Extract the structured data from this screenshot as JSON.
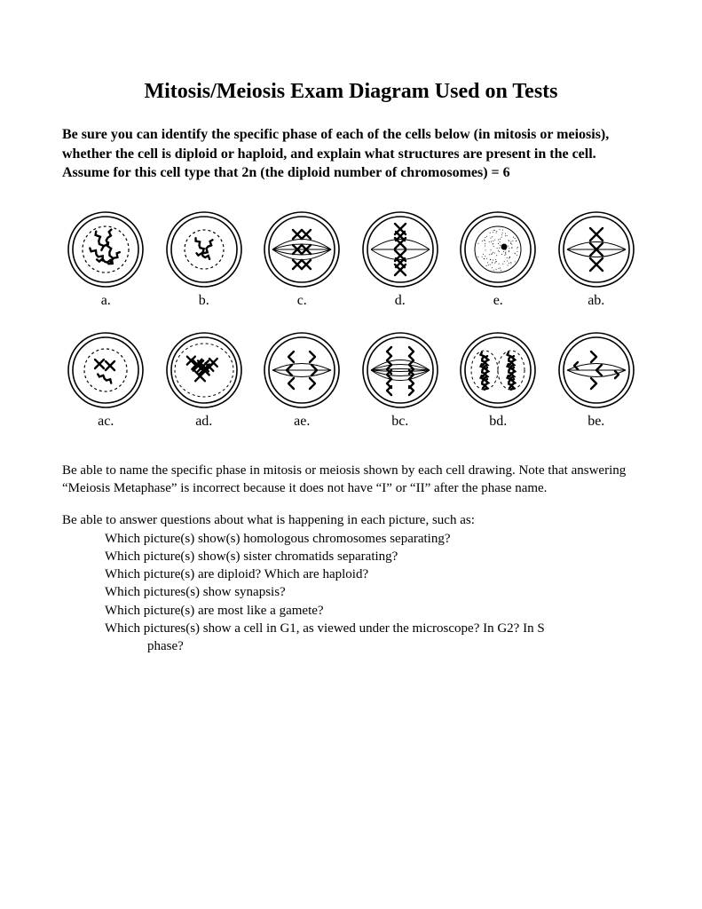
{
  "title": "Mitosis/Meiosis Exam Diagram Used on Tests",
  "intro": "Be sure you can identify the specific phase of each of the cells below (in mitosis or meiosis), whether the cell is diploid or haploid, and explain what structures are present in the cell.  Assume for this cell type that 2n (the diploid number of chromosomes) = 6",
  "cells": [
    {
      "label": "a.",
      "type": "prophase_nuclear"
    },
    {
      "label": "b.",
      "type": "prophase_small"
    },
    {
      "label": "c.",
      "type": "metaphase_I"
    },
    {
      "label": "d.",
      "type": "metaphase_line"
    },
    {
      "label": "e.",
      "type": "interphase"
    },
    {
      "label": "ab.",
      "type": "metaphase_3"
    },
    {
      "label": "ac.",
      "type": "prophase_few"
    },
    {
      "label": "ad.",
      "type": "anaphase_many"
    },
    {
      "label": "ae.",
      "type": "anaphase_6"
    },
    {
      "label": "bc.",
      "type": "anaphase_12"
    },
    {
      "label": "bd.",
      "type": "telophase_two"
    },
    {
      "label": "be.",
      "type": "metaphase_II"
    }
  ],
  "para1": "Be able to name the specific phase in mitosis or meiosis shown by each cell drawing. Note that answering “Meiosis Metaphase” is incorrect because it does not have “I” or “II” after the phase name.",
  "para2": "Be able to answer questions about what is happening in each picture, such as:",
  "questions": [
    "Which picture(s) show(s) homologous chromosomes separating?",
    "Which picture(s) show(s) sister chromatids separating?",
    "Which picture(s) are diploid?  Which are haploid?",
    "Which pictures(s) show synapsis?",
    "Which picture(s) are most like a gamete?",
    "Which pictures(s) show a cell in G1, as viewed under the microscope?  In G2?  In S"
  ],
  "q_cont": "phase?",
  "style": {
    "stroke": "#000000",
    "bg": "#ffffff",
    "outer_r": 42,
    "inner_r": 37,
    "stroke_w": 1.6,
    "chrom_w": 2.4,
    "canvas": 90
  }
}
